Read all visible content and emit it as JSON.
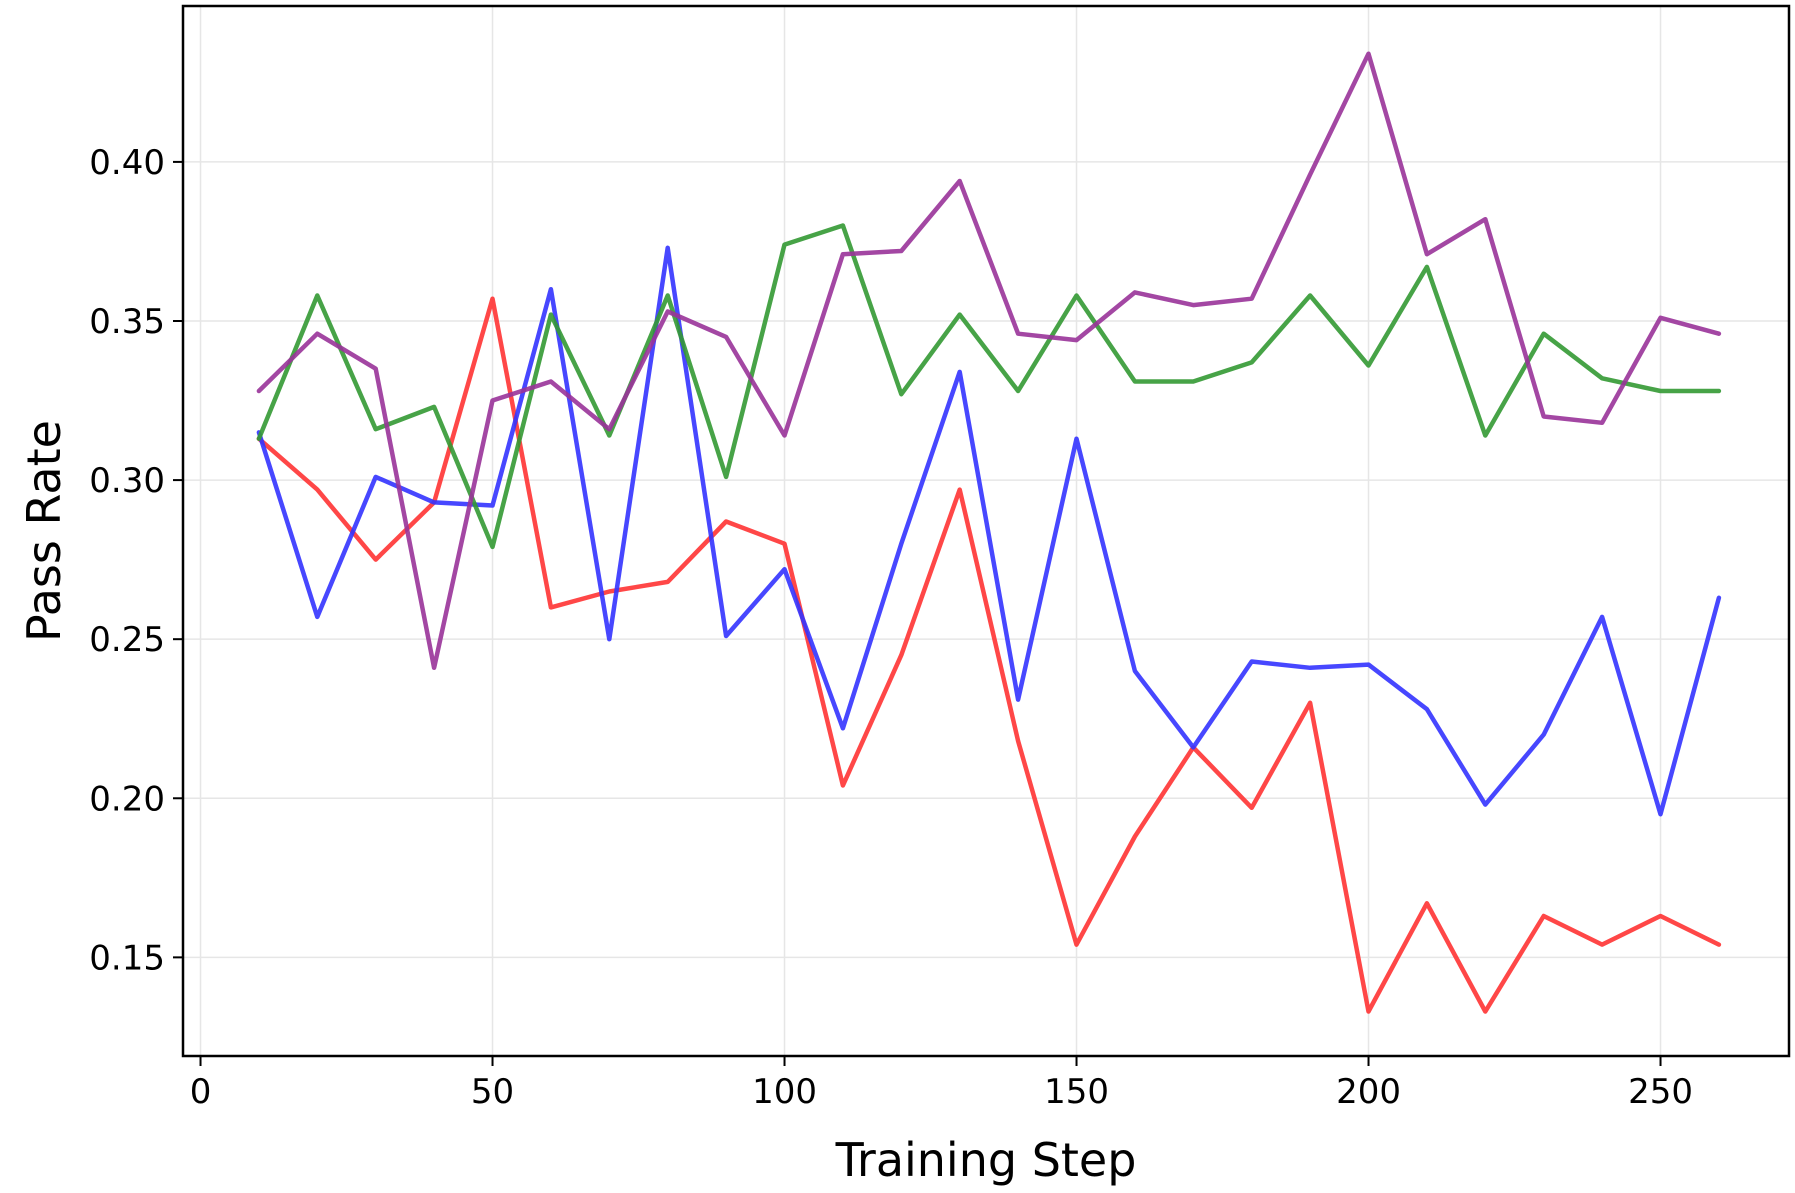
{
  "chart_data": {
    "type": "line",
    "title": "",
    "xlabel": "Training Step",
    "ylabel": "Pass Rate",
    "xlim": [
      -3,
      272
    ],
    "ylim": [
      0.119,
      0.449
    ],
    "xticks": [
      0,
      50,
      100,
      150,
      200,
      250
    ],
    "yticks": [
      0.15,
      0.2,
      0.25,
      0.3,
      0.35,
      0.4
    ],
    "xtick_labels": [
      "0",
      "50",
      "100",
      "150",
      "200",
      "250"
    ],
    "ytick_labels": [
      "0.15",
      "0.20",
      "0.25",
      "0.30",
      "0.35",
      "0.40"
    ],
    "grid": true,
    "legend": "none",
    "x": [
      10,
      20,
      30,
      40,
      50,
      60,
      70,
      80,
      90,
      100,
      110,
      120,
      130,
      140,
      150,
      160,
      170,
      180,
      190,
      200,
      210,
      220,
      230,
      240,
      250,
      260
    ],
    "series": [
      {
        "color": "#ff3333",
        "values": [
          0.313,
          0.297,
          0.275,
          0.293,
          0.357,
          0.26,
          0.265,
          0.268,
          0.287,
          0.28,
          0.204,
          0.245,
          0.297,
          0.218,
          0.154,
          0.188,
          0.216,
          0.197,
          0.23,
          0.133,
          0.167,
          0.133,
          0.163,
          0.154,
          0.163,
          0.154
        ]
      },
      {
        "color": "#3333ff",
        "values": [
          0.315,
          0.257,
          0.301,
          0.293,
          0.292,
          0.36,
          0.25,
          0.373,
          0.251,
          0.272,
          0.222,
          0.28,
          0.334,
          0.231,
          0.313,
          0.24,
          0.216,
          0.243,
          0.241,
          0.242,
          0.228,
          0.198,
          0.22,
          0.257,
          0.195,
          0.263
        ]
      },
      {
        "color": "#339933",
        "values": [
          0.313,
          0.358,
          0.316,
          0.323,
          0.279,
          0.352,
          0.314,
          0.358,
          0.301,
          0.374,
          0.38,
          0.327,
          0.352,
          0.328,
          0.358,
          0.331,
          0.331,
          0.337,
          0.358,
          0.336,
          0.367,
          0.314,
          0.346,
          0.332,
          0.328,
          0.328
        ]
      },
      {
        "color": "#993399",
        "values": [
          0.328,
          0.346,
          0.335,
          0.241,
          0.325,
          0.331,
          0.316,
          0.353,
          0.345,
          0.314,
          0.371,
          0.372,
          0.394,
          0.346,
          0.344,
          0.359,
          0.355,
          0.357,
          0.396,
          0.434,
          0.371,
          0.382,
          0.32,
          0.318,
          0.351,
          0.346
        ]
      }
    ]
  }
}
